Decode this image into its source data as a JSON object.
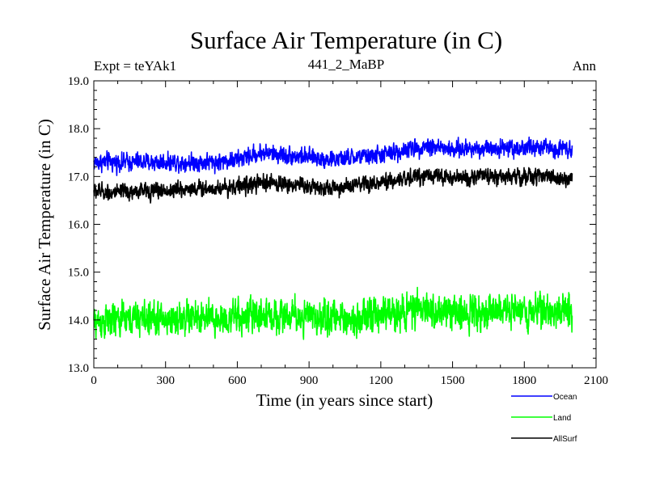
{
  "chart_data": {
    "type": "line",
    "title": "Surface Air Temperature (in C)",
    "subtitle": "441_2_MaBP",
    "left_label": "Expt = teYAk1",
    "right_label": "Ann",
    "xlabel": "Time (in years since start)",
    "ylabel": "Surface Air Temperature (in C)",
    "xlim": [
      0,
      2100
    ],
    "ylim": [
      13.0,
      19.0
    ],
    "x_ticks": [
      0,
      300,
      600,
      900,
      1200,
      1500,
      1800,
      2100
    ],
    "x_tick_labels": [
      "0",
      "300",
      "600",
      "900",
      "1200",
      "1500",
      "1800",
      "2100"
    ],
    "y_ticks": [
      13.0,
      14.0,
      15.0,
      16.0,
      17.0,
      18.0,
      19.0
    ],
    "y_tick_labels": [
      "13.0",
      "14.0",
      "15.0",
      "16.0",
      "17.0",
      "18.0",
      "19.0"
    ],
    "x_range": [
      0,
      2000
    ],
    "legend_position": "bottom-right",
    "series": [
      {
        "name": "Ocean",
        "color": "#0000ff",
        "trend_x": [
          0,
          100,
          200,
          300,
          400,
          500,
          600,
          700,
          800,
          900,
          1000,
          1100,
          1200,
          1300,
          1400,
          1500,
          1600,
          1700,
          1800,
          1900,
          2000
        ],
        "trend_y": [
          17.3,
          17.3,
          17.3,
          17.3,
          17.3,
          17.3,
          17.35,
          17.5,
          17.45,
          17.4,
          17.35,
          17.4,
          17.45,
          17.55,
          17.65,
          17.55,
          17.6,
          17.6,
          17.6,
          17.6,
          17.6
        ],
        "noise": 0.13,
        "min": 17.0,
        "max": 18.1
      },
      {
        "name": "Land",
        "color": "#00ff00",
        "trend_x": [
          0,
          100,
          200,
          300,
          400,
          500,
          600,
          700,
          800,
          900,
          1000,
          1100,
          1200,
          1300,
          1400,
          1500,
          1600,
          1700,
          1800,
          1900,
          2000
        ],
        "trend_y": [
          13.95,
          14.0,
          14.05,
          14.0,
          14.05,
          14.0,
          14.05,
          14.1,
          14.1,
          14.05,
          14.05,
          14.05,
          14.1,
          14.2,
          14.2,
          14.15,
          14.2,
          14.2,
          14.2,
          14.2,
          14.2
        ],
        "noise": 0.25,
        "min": 13.2,
        "max": 15.0
      },
      {
        "name": "AllSurf",
        "color": "#000000",
        "trend_x": [
          0,
          100,
          200,
          300,
          400,
          500,
          600,
          700,
          800,
          900,
          1000,
          1100,
          1200,
          1300,
          1400,
          1500,
          1600,
          1700,
          1800,
          1900,
          2000
        ],
        "trend_y": [
          16.7,
          16.65,
          16.7,
          16.7,
          16.75,
          16.75,
          16.8,
          16.85,
          16.85,
          16.8,
          16.75,
          16.8,
          16.85,
          16.95,
          17.05,
          16.95,
          17.0,
          17.0,
          17.0,
          17.0,
          16.95
        ],
        "noise": 0.12,
        "min": 16.3,
        "max": 17.4
      }
    ]
  }
}
